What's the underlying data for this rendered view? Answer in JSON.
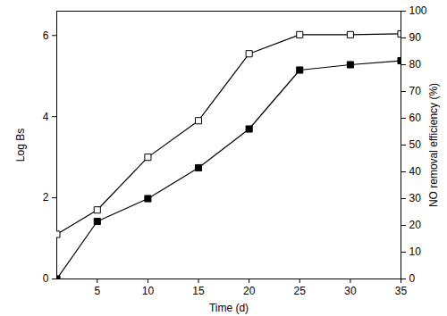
{
  "chart_data": {
    "type": "line",
    "x_label": "Time (d)",
    "y_label": "Log Bs",
    "y2_label": "NO removal efficiency (%)",
    "x": [
      1,
      5,
      10,
      15,
      20,
      25,
      30,
      35
    ],
    "series": [
      {
        "color": "#000000",
        "marker": "square-open",
        "values": [
          1.1,
          1.7,
          3.0,
          3.9,
          5.55,
          6.02,
          6.02,
          6.04
        ]
      },
      {
        "color": "#000000",
        "marker": "square",
        "axis": "y2",
        "values": [
          0,
          21.5,
          30,
          41.5,
          56,
          78,
          80,
          81.5
        ]
      }
    ],
    "xlim": [
      1,
      35
    ],
    "xticks": [
      5,
      10,
      15,
      20,
      25,
      30,
      35
    ],
    "ylim": [
      0,
      6.6
    ],
    "yticks": [
      0,
      2,
      4,
      6
    ],
    "y2lim": [
      0,
      100
    ],
    "y2ticks": [
      0,
      10,
      20,
      30,
      40,
      50,
      60,
      70,
      80,
      90,
      100
    ]
  }
}
